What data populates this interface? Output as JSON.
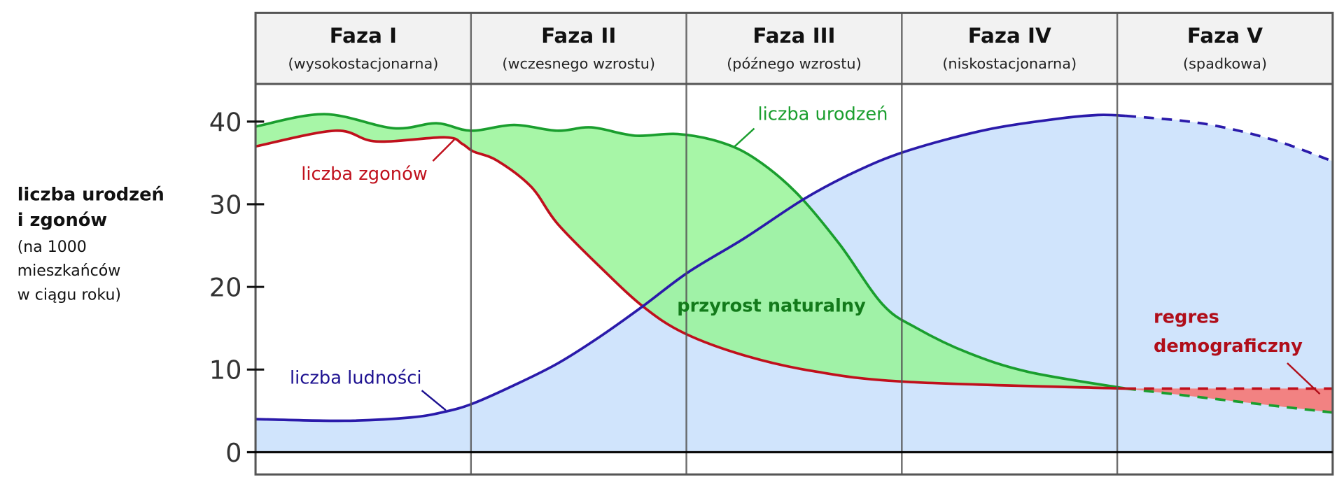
{
  "chart_data": {
    "type": "line",
    "title": "",
    "ylabel": {
      "bold_lines": [
        "liczba urodzeń",
        "i zgonów"
      ],
      "lines": [
        "(na 1000",
        "mieszkańców",
        "w ciągu roku)"
      ]
    },
    "xlabel": "",
    "ylim": [
      0,
      44
    ],
    "yticks": [
      0,
      10,
      20,
      30,
      40
    ],
    "phases": [
      {
        "name": "Faza I",
        "subtitle": "(wysokostacjonarna)"
      },
      {
        "name": "Faza II",
        "subtitle": "(wczesnego wzrostu)"
      },
      {
        "name": "Faza III",
        "subtitle": "(późnego wzrostu)"
      },
      {
        "name": "Faza IV",
        "subtitle": "(niskostacjonarna)"
      },
      {
        "name": "Faza V",
        "subtitle": "(spadkowa)"
      }
    ],
    "series": [
      {
        "name": "liczba urodzeń",
        "color": "#1a9e2e",
        "points": [
          [
            0,
            39.4
          ],
          [
            0.32,
            40.9
          ],
          [
            0.64,
            39.2
          ],
          [
            0.84,
            39.8
          ],
          [
            1.0,
            38.9
          ],
          [
            1.2,
            39.6
          ],
          [
            1.4,
            38.9
          ],
          [
            1.56,
            39.3
          ],
          [
            1.76,
            38.3
          ],
          [
            1.96,
            38.5
          ],
          [
            2.16,
            37.5
          ],
          [
            2.32,
            35.5
          ],
          [
            2.51,
            31.4
          ],
          [
            2.71,
            25.2
          ],
          [
            2.91,
            17.9
          ],
          [
            3.07,
            15.0
          ],
          [
            3.31,
            12.0
          ],
          [
            3.59,
            9.7
          ],
          [
            4.04,
            7.7
          ]
        ],
        "projected": [
          [
            4.04,
            7.7
          ],
          [
            4.5,
            6.3
          ],
          [
            5,
            4.8
          ]
        ]
      },
      {
        "name": "liczba zgonów",
        "color": "#c0101c",
        "points": [
          [
            0,
            37.0
          ],
          [
            0.37,
            38.9
          ],
          [
            0.56,
            37.6
          ],
          [
            0.88,
            38.1
          ],
          [
            0.96,
            37.3
          ],
          [
            1.01,
            36.4
          ],
          [
            1.12,
            35.3
          ],
          [
            1.28,
            32.1
          ],
          [
            1.4,
            27.7
          ],
          [
            1.6,
            22.4
          ],
          [
            1.8,
            17.6
          ],
          [
            1.99,
            14.4
          ],
          [
            2.27,
            11.7
          ],
          [
            2.59,
            9.8
          ],
          [
            3.03,
            8.5
          ],
          [
            4.04,
            7.7
          ]
        ],
        "projected": [
          [
            4.04,
            7.7
          ],
          [
            5,
            7.7
          ]
        ]
      },
      {
        "name": "liczba ludności",
        "color": "#2a1aaa",
        "points": [
          [
            0,
            4.0
          ],
          [
            0.41,
            3.8
          ],
          [
            0.72,
            4.2
          ],
          [
            0.88,
            4.9
          ],
          [
            1.01,
            5.9
          ],
          [
            1.2,
            8.1
          ],
          [
            1.4,
            10.7
          ],
          [
            1.6,
            14.0
          ],
          [
            1.8,
            17.7
          ],
          [
            2.01,
            21.8
          ],
          [
            2.27,
            25.9
          ],
          [
            2.55,
            30.7
          ],
          [
            2.79,
            34.0
          ],
          [
            3.03,
            36.5
          ],
          [
            3.39,
            39.0
          ],
          [
            3.71,
            40.3
          ],
          [
            3.91,
            40.8
          ],
          [
            4.04,
            40.7
          ]
        ],
        "projected": [
          [
            4.04,
            40.7
          ],
          [
            4.39,
            39.8
          ],
          [
            4.71,
            37.9
          ],
          [
            5,
            35.2
          ]
        ]
      }
    ],
    "annotations": {
      "natural_increase": "przyrost naturalny",
      "regress_line1": "regres",
      "regress_line2": "demograficzny"
    },
    "colors": {
      "population_fill": "#d0e4fc",
      "increase_fill": "#98f598",
      "regress_fill": "#f28282",
      "header_fill": "#f2f2f2",
      "increase_text": "#127a1a",
      "regress_text": "#b00e1a"
    },
    "grid": false
  }
}
